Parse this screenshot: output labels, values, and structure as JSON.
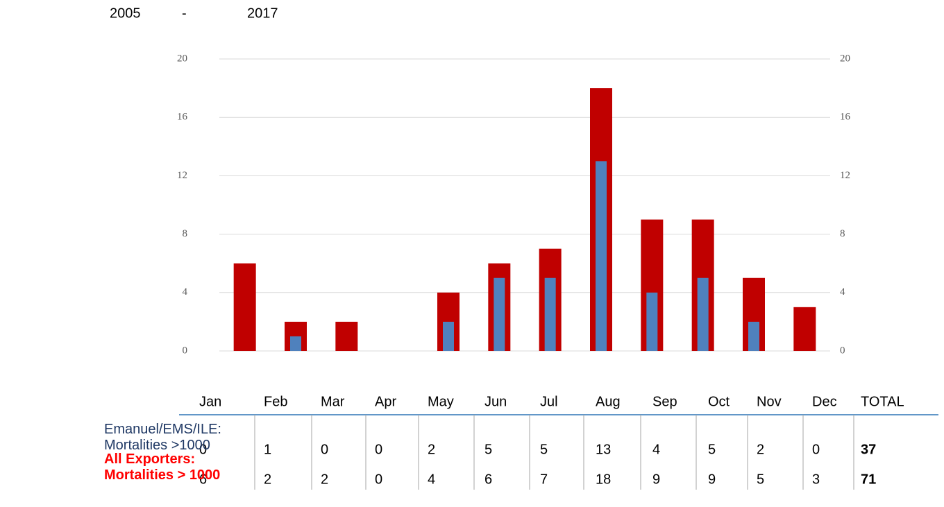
{
  "header": {
    "from": "2005",
    "dash": "-",
    "to": "2017"
  },
  "chart_data": {
    "type": "bar",
    "categories": [
      "Jan",
      "Feb",
      "Mar",
      "Apr",
      "May",
      "Jun",
      "Jul",
      "Aug",
      "Sep",
      "Oct",
      "Nov",
      "Dec"
    ],
    "series": [
      {
        "color": "#c00000",
        "values": [
          6,
          2,
          2,
          0,
          4,
          6,
          7,
          18,
          9,
          9,
          5,
          3
        ]
      },
      {
        "color": "#4f81bd",
        "values": [
          0,
          1,
          0,
          0,
          2,
          5,
          5,
          13,
          4,
          5,
          2,
          0
        ]
      }
    ],
    "ylim": [
      0,
      20
    ],
    "yticks": [
      0,
      4,
      8,
      12,
      16,
      20
    ],
    "y2lim": [
      0,
      20
    ],
    "y2ticks": [
      0,
      4,
      8,
      12,
      16,
      20
    ],
    "grid": true
  },
  "table": {
    "total_header": "TOTAL",
    "rows": [
      {
        "label_lines": [
          "Emanuel/EMS/ILE:",
          "Mortalities >1000"
        ],
        "series": 1,
        "total": 37,
        "color": "#1f3864"
      },
      {
        "label_lines": [
          "All Exporters:",
          "Mortalities > 1000"
        ],
        "series": 0,
        "total": 71,
        "color": "#ff0000"
      }
    ]
  }
}
